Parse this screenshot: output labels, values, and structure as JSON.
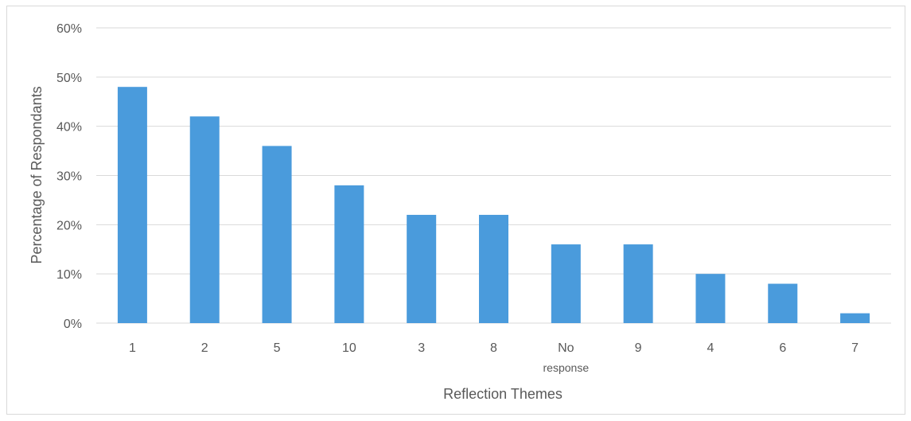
{
  "chart_data": {
    "type": "bar",
    "title": "",
    "xlabel": "Reflection Themes",
    "ylabel": "Percentage of Respondants",
    "categories": [
      "1",
      "2",
      "5",
      "10",
      "3",
      "8",
      "No response",
      "9",
      "4",
      "6",
      "7"
    ],
    "values": [
      48,
      42,
      36,
      28,
      22,
      22,
      16,
      16,
      10,
      8,
      2
    ],
    "ylim": [
      0,
      60
    ],
    "yticks": [
      "0%",
      "10%",
      "20%",
      "30%",
      "40%",
      "50%",
      "60%"
    ],
    "ytick_values": [
      0,
      10,
      20,
      30,
      40,
      50,
      60
    ],
    "grid": true,
    "bar_color": "#4a9bdc",
    "grid_color": "#d9d9d9"
  }
}
